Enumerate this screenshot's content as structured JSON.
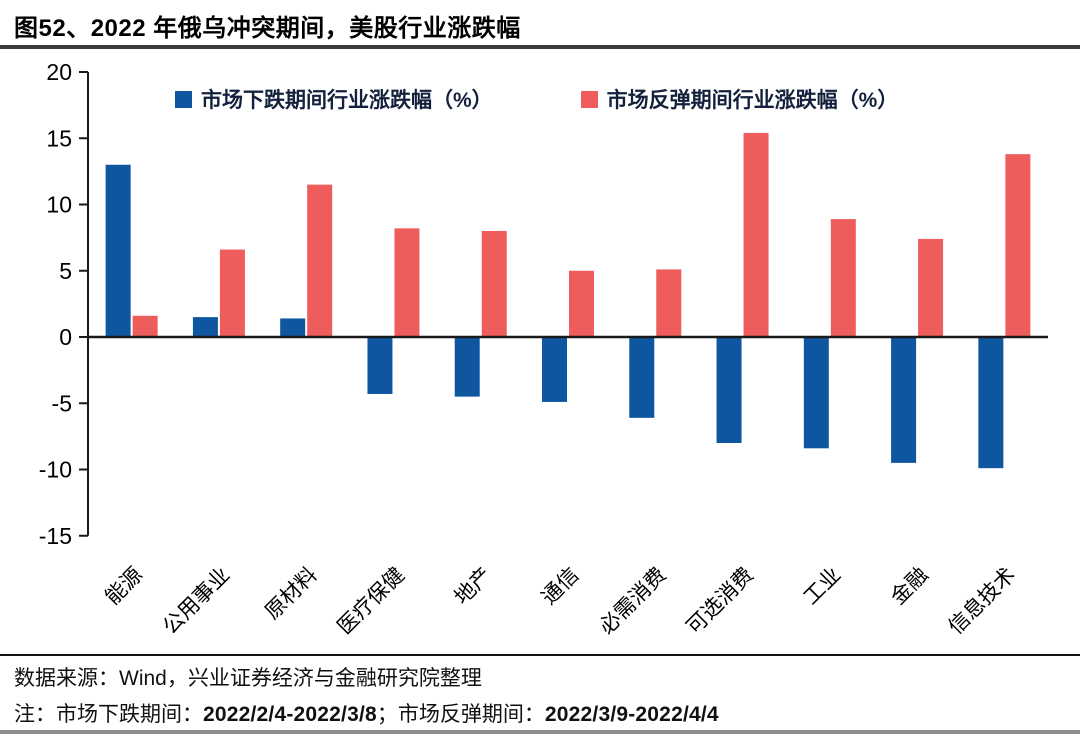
{
  "page": {
    "title": "图52、2022 年俄乌冲突期间，美股行业涨跌幅"
  },
  "chart_data": {
    "type": "bar",
    "categories": [
      "能源",
      "公用事业",
      "原材料",
      "医疗保健",
      "地产",
      "通信",
      "必需消费",
      "可选消费",
      "工业",
      "金融",
      "信息技术"
    ],
    "series": [
      {
        "name": "市场下跌期间行业涨跌幅（%）",
        "color": "#0F56A0",
        "values": [
          13.0,
          1.5,
          1.4,
          -4.3,
          -4.5,
          -4.9,
          -6.1,
          -8.0,
          -8.4,
          -9.5,
          -9.9
        ]
      },
      {
        "name": "市场反弹期间行业涨跌幅（%）",
        "color": "#EF5C5C",
        "values": [
          1.6,
          6.6,
          11.5,
          8.2,
          8.0,
          5.0,
          5.1,
          15.4,
          8.9,
          7.4,
          13.8
        ]
      }
    ],
    "title": "图52、2022 年俄乌冲突期间，美股行业涨跌幅",
    "xlabel": "",
    "ylabel": "",
    "ylim": [
      -15,
      20
    ],
    "yticks": [
      20,
      15,
      10,
      5,
      0,
      -5,
      -10,
      -15
    ],
    "grid": false,
    "legend_position": "top",
    "axis_color": "#1a1a1a"
  },
  "footer": {
    "source": "数据来源：Wind，兴业证券经济与金融研究院整理",
    "note_prefix": "注：市场下跌期间：",
    "note_date1": "2022/2/4-2022/3/8",
    "note_middle": "；市场反弹期间：",
    "note_date2": "2022/3/9-2022/4/4"
  }
}
